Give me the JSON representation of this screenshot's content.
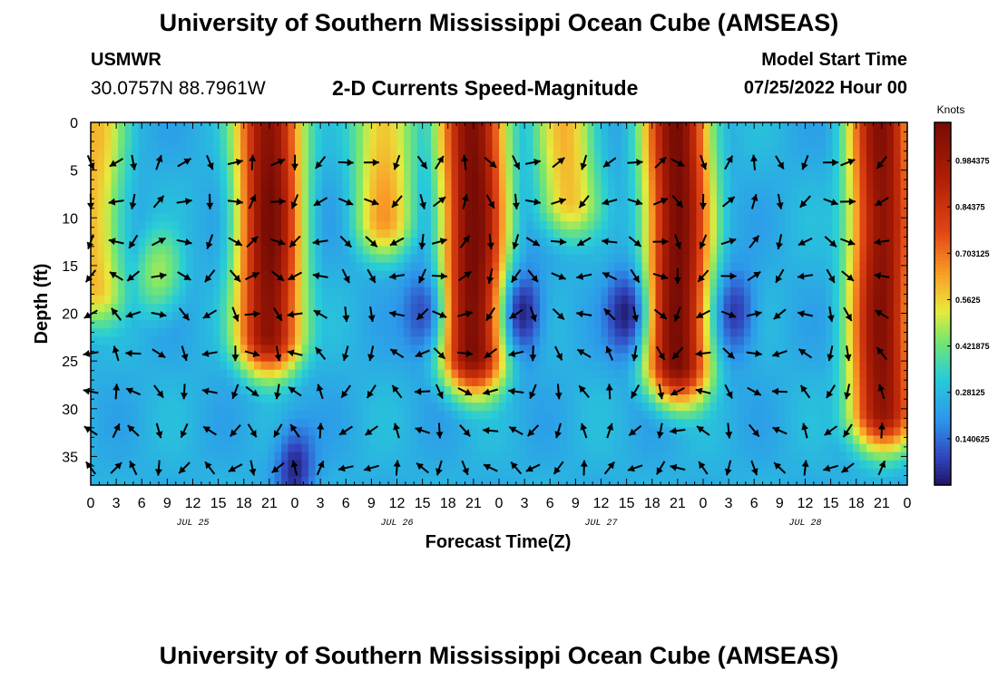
{
  "header": {
    "title": "University of Southern Mississippi Ocean Cube (AMSEAS)",
    "station": "USMWR",
    "coords": "30.0757N  88.7961W",
    "subtitle": "2-D Currents Speed-Magnitude",
    "model_label": "Model Start Time",
    "model_time": "07/25/2022 Hour 00"
  },
  "footer": {
    "title": "University of Southern Mississippi Ocean Cube (AMSEAS)"
  },
  "chart_data": {
    "type": "heatmap",
    "title": "2-D Currents Speed-Magnitude",
    "xlabel": "Forecast Time(Z)",
    "ylabel": "Depth (ft)",
    "x_range_hours": [
      0,
      96
    ],
    "x_tick_labels": [
      "0",
      "3",
      "6",
      "9",
      "12",
      "15",
      "18",
      "21",
      "0",
      "3",
      "6",
      "9",
      "12",
      "15",
      "18",
      "21",
      "0",
      "3",
      "6",
      "9",
      "12",
      "15",
      "18",
      "21",
      "0",
      "3",
      "6",
      "9",
      "12",
      "15",
      "18",
      "21",
      "0"
    ],
    "day_labels": [
      {
        "label": "JUL 25",
        "hour": 12
      },
      {
        "label": "JUL 26",
        "hour": 36
      },
      {
        "label": "JUL 27",
        "hour": 60
      },
      {
        "label": "JUL 28",
        "hour": 84
      }
    ],
    "y_range_ft": [
      0,
      38
    ],
    "y_ticks": [
      0,
      5,
      10,
      15,
      20,
      25,
      30,
      35
    ],
    "colorbar": {
      "title": "Knots",
      "range": [
        0,
        1.1
      ],
      "tick_values": [
        0.140625,
        0.28125,
        0.421875,
        0.5625,
        0.703125,
        0.84375,
        0.984375
      ],
      "tick_labels": [
        "0.140625",
        "0.28125",
        "0.421875",
        "0.5625",
        "0.703125",
        "0.84375",
        "0.984375"
      ]
    },
    "speed_peaks": [
      {
        "hour": 0.3,
        "depth_to": 17,
        "max_knots": 0.6
      },
      {
        "hour": 8,
        "depth": 16,
        "max_knots": 0.47
      },
      {
        "hour": 21,
        "depth_to": 22,
        "max_knots": 1.08
      },
      {
        "hour": 34.5,
        "depth_to": 10,
        "max_knots": 0.62
      },
      {
        "hour": 45,
        "depth_to": 24,
        "max_knots": 1.1
      },
      {
        "hour": 56,
        "depth_to": 8,
        "max_knots": 0.6
      },
      {
        "hour": 69,
        "depth_to": 25,
        "max_knots": 1.1
      },
      {
        "hour": 93,
        "depth_to": 30,
        "max_knots": 1.05
      }
    ],
    "speed_minima": [
      {
        "hour": 51,
        "depth": 20,
        "min_knots": 0.02
      },
      {
        "hour": 63,
        "depth": 20,
        "min_knots": 0.02
      },
      {
        "hour": 24,
        "depth": 36,
        "min_knots": 0.03
      },
      {
        "hour": 39,
        "depth": 20,
        "min_knots": 0.08
      },
      {
        "hour": 76,
        "depth": 20,
        "min_knots": 0.06
      }
    ],
    "vector_hours": [
      0,
      3,
      5,
      8,
      11,
      14,
      17,
      19,
      22,
      24,
      27,
      30,
      33,
      36,
      39,
      41,
      44,
      47,
      50,
      52,
      55,
      58,
      61,
      64,
      67,
      69,
      72,
      75,
      78,
      81,
      84,
      87,
      89,
      93
    ],
    "vector_depths_ft": [
      4.2,
      8.3,
      12.5,
      16.1,
      20.1,
      24.2,
      28.2,
      32.3,
      36.2
    ]
  }
}
